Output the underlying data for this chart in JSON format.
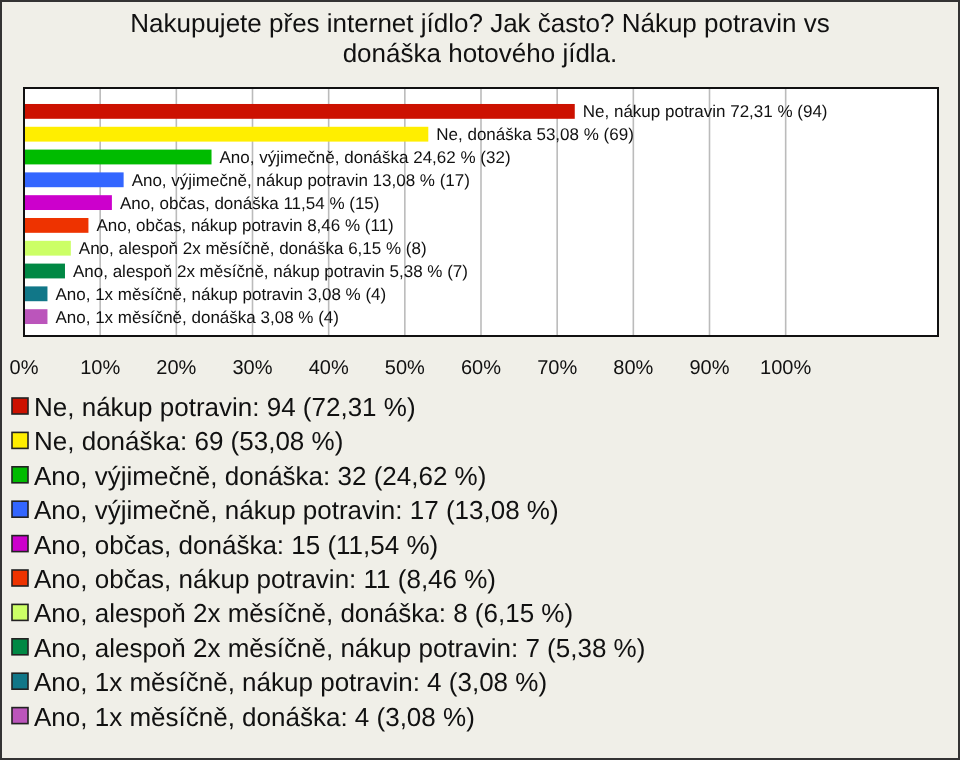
{
  "chart_data": {
    "type": "bar",
    "orientation": "horizontal",
    "title": "Nakupujete přes internet jídlo? Jak často? Nákup potravin vs donáška hotového jídla.",
    "categories": [
      null
    ],
    "series": [
      {
        "name": "Ne, nákup potravin: 94 (72,31 %)",
        "color": "#cc1100",
        "values": [
          72.31
        ],
        "value_labels": [
          "Ne, nákup potravin 72,31 % (94)"
        ]
      },
      {
        "name": "Ne, donáška: 69 (53,08 %)",
        "color": "#ffee00",
        "values": [
          53.08
        ],
        "value_labels": [
          "Ne, donáška 53,08 % (69)"
        ]
      },
      {
        "name": "Ano, výjimečně, donáška: 32 (24,62 %)",
        "color": "#00bb00",
        "values": [
          24.62
        ],
        "value_labels": [
          "Ano, výjimečně, donáška 24,62 % (32)"
        ]
      },
      {
        "name": "Ano, výjimečně, nákup potravin: 17 (13,08 %)",
        "color": "#3366ff",
        "values": [
          13.08
        ],
        "value_labels": [
          "Ano, výjimečně, nákup potravin 13,08 % (17)"
        ]
      },
      {
        "name": "Ano, občas, donáška: 15 (11,54 %)",
        "color": "#cc00cc",
        "values": [
          11.54
        ],
        "value_labels": [
          "Ano, občas, donáška 11,54 % (15)"
        ]
      },
      {
        "name": "Ano, občas, nákup potravin: 11 (8,46 %)",
        "color": "#ee3300",
        "values": [
          8.46
        ],
        "value_labels": [
          "Ano, občas, nákup potravin 8,46 % (11)"
        ]
      },
      {
        "name": "Ano, alespoň 2x měsíčně, donáška: 8 (6,15 %)",
        "color": "#ccff66",
        "values": [
          6.15
        ],
        "value_labels": [
          "Ano, alespoň 2x měsíčně, donáška 6,15 % (8)"
        ]
      },
      {
        "name": "Ano, alespoň 2x měsíčně, nákup potravin: 7 (5,38 %)",
        "color": "#008844",
        "values": [
          5.38
        ],
        "value_labels": [
          "Ano, alespoň 2x měsíčně, nákup potravin 5,38 % (7)"
        ]
      },
      {
        "name": "Ano, 1x měsíčně, nákup potravin: 4 (3,08 %)",
        "color": "#117788",
        "values": [
          3.08
        ],
        "value_labels": [
          "Ano, 1x měsíčně, nákup potravin 3,08 % (4)"
        ]
      },
      {
        "name": "Ano, 1x měsíčně, donáška: 4 (3,08 %)",
        "color": "#bb55bb",
        "values": [
          3.08
        ],
        "value_labels": [
          "Ano, 1x měsíčně, donáška 3,08 % (4)"
        ]
      }
    ],
    "xlim": [
      0,
      120
    ],
    "xticks": [
      {
        "value": 0,
        "label": "0%"
      },
      {
        "value": 10,
        "label": "10%"
      },
      {
        "value": 20,
        "label": "20%"
      },
      {
        "value": 30,
        "label": "30%"
      },
      {
        "value": 40,
        "label": "40%"
      },
      {
        "value": 50,
        "label": "50%"
      },
      {
        "value": 60,
        "label": "60%"
      },
      {
        "value": 70,
        "label": "70%"
      },
      {
        "value": 80,
        "label": "80%"
      },
      {
        "value": 90,
        "label": "90%"
      },
      {
        "value": 100,
        "label": "100%"
      }
    ],
    "grid": "x",
    "legend": "bottom"
  }
}
